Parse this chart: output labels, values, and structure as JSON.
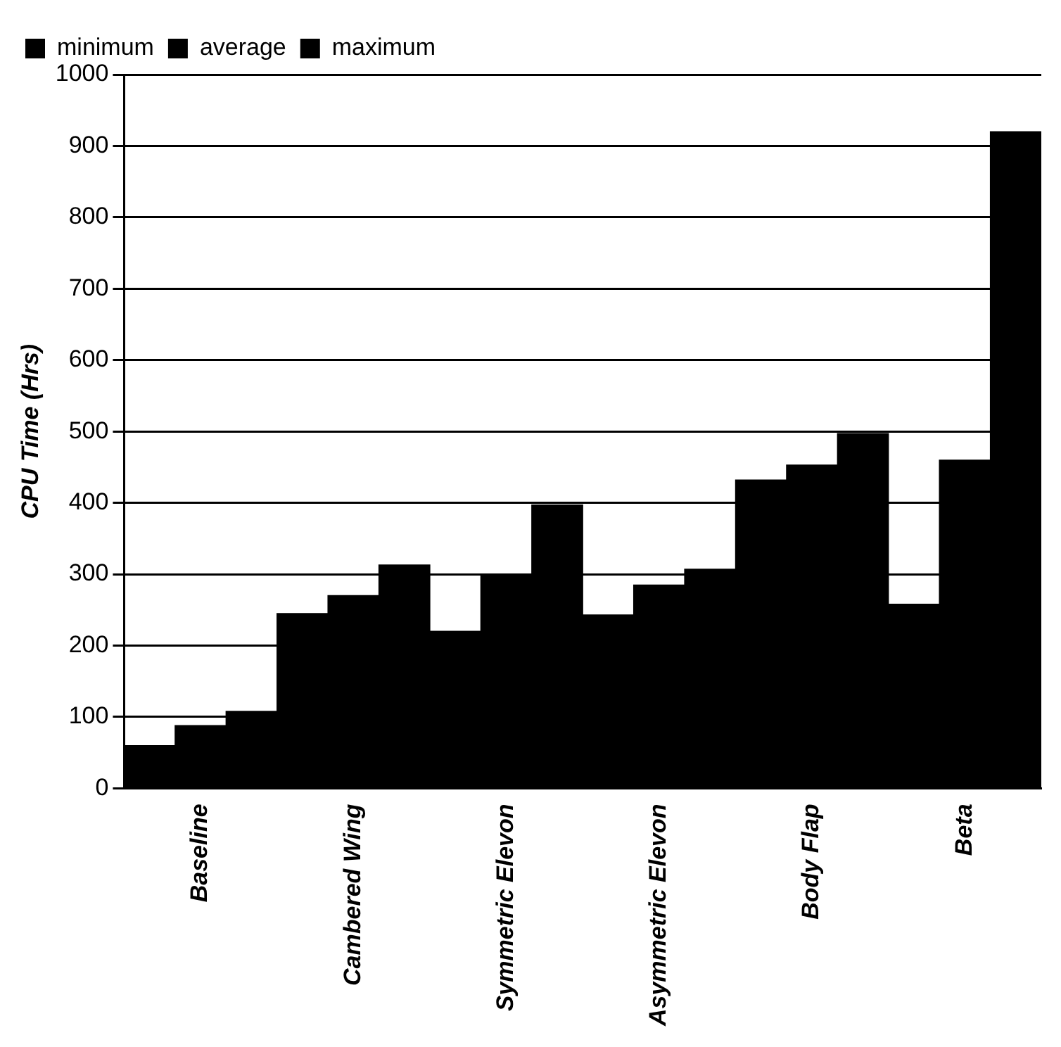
{
  "chart_data": {
    "type": "bar",
    "ylabel": "CPU Time (Hrs)",
    "categories": [
      "Baseline",
      "Cambered Wing",
      "Symmetric Elevon",
      "Asymmetric Elevon",
      "Body Flap",
      "Beta"
    ],
    "series": [
      {
        "name": "minimum",
        "color": "#000000",
        "values": [
          60,
          245,
          220,
          243,
          432,
          258
        ]
      },
      {
        "name": "average",
        "color": "#000000",
        "values": [
          88,
          270,
          300,
          285,
          453,
          460
        ]
      },
      {
        "name": "maximum",
        "color": "#000000",
        "values": [
          108,
          313,
          397,
          307,
          497,
          920
        ]
      }
    ],
    "ylim": [
      0,
      1000
    ],
    "yticks": [
      0,
      100,
      200,
      300,
      400,
      500,
      600,
      700,
      800,
      900,
      1000
    ],
    "grid": "y",
    "legend": "top left"
  }
}
